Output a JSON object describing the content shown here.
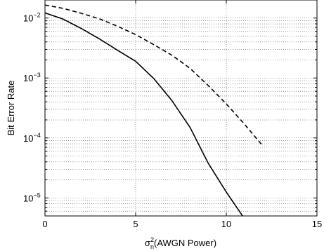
{
  "chart_data": {
    "type": "line",
    "title": "",
    "xlabel_parts": {
      "base": "σ",
      "sup": "2",
      "sub": "n",
      "rest": "(AWGN Power)"
    },
    "ylabel": "Bit Error Rate",
    "xlim": [
      0,
      15
    ],
    "ylim": [
      5e-06,
      0.02
    ],
    "yscale": "log",
    "x_ticks": [
      0,
      5,
      10,
      15
    ],
    "y_ticks": [
      {
        "value": 1e-05,
        "base": "10",
        "exp": "−5"
      },
      {
        "value": 0.0001,
        "base": "10",
        "exp": "−4"
      },
      {
        "value": 0.001,
        "base": "10",
        "exp": "−3"
      },
      {
        "value": 0.01,
        "base": "10",
        "exp": "−2"
      }
    ],
    "grid": true,
    "series": [
      {
        "style": "solid",
        "color": "#000000",
        "x": [
          0,
          1,
          2,
          3,
          4,
          5,
          6,
          7,
          8,
          9,
          10,
          11
        ],
        "y": [
          0.0122,
          0.0096,
          0.0067,
          0.0045,
          0.0029,
          0.0019,
          0.00098,
          0.00042,
          0.00015,
          3.8e-05,
          1.25e-05,
          4.5e-06
        ]
      },
      {
        "style": "dashed",
        "color": "#000000",
        "x": [
          0,
          1,
          2,
          3,
          4,
          5,
          6,
          7,
          8,
          9,
          10,
          11,
          12
        ],
        "y": [
          0.0165,
          0.0145,
          0.012,
          0.0097,
          0.0073,
          0.0053,
          0.0036,
          0.0024,
          0.00145,
          0.00075,
          0.00037,
          0.00017,
          7.45e-05
        ]
      }
    ]
  }
}
